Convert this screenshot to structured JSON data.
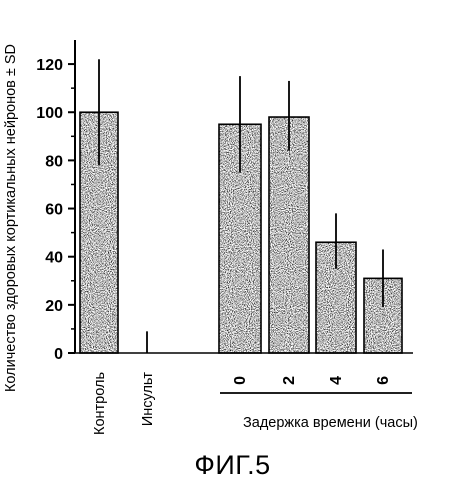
{
  "chart_data": {
    "type": "bar",
    "title": "",
    "ylabel": "Количество здоровых кортикальных нейронов ± SD",
    "xlabel": "Задержка времени (часы)",
    "ylim": [
      0,
      130
    ],
    "yticks": [
      0,
      20,
      40,
      60,
      80,
      100,
      120
    ],
    "categories": [
      "Контроль",
      "Инсульт",
      "0",
      "2",
      "4",
      "6"
    ],
    "values": [
      100,
      0,
      95,
      98,
      46,
      31
    ],
    "errors": [
      {
        "low": 78,
        "high": 122
      },
      {
        "low": 0,
        "high": 9
      },
      {
        "low": 75,
        "high": 115
      },
      {
        "low": 84,
        "high": 113
      },
      {
        "low": 35,
        "high": 58
      },
      {
        "low": 19,
        "high": 43
      }
    ],
    "grid": false,
    "bar_fill": "stippled"
  },
  "figure": {
    "caption": "ФИГ.5"
  }
}
